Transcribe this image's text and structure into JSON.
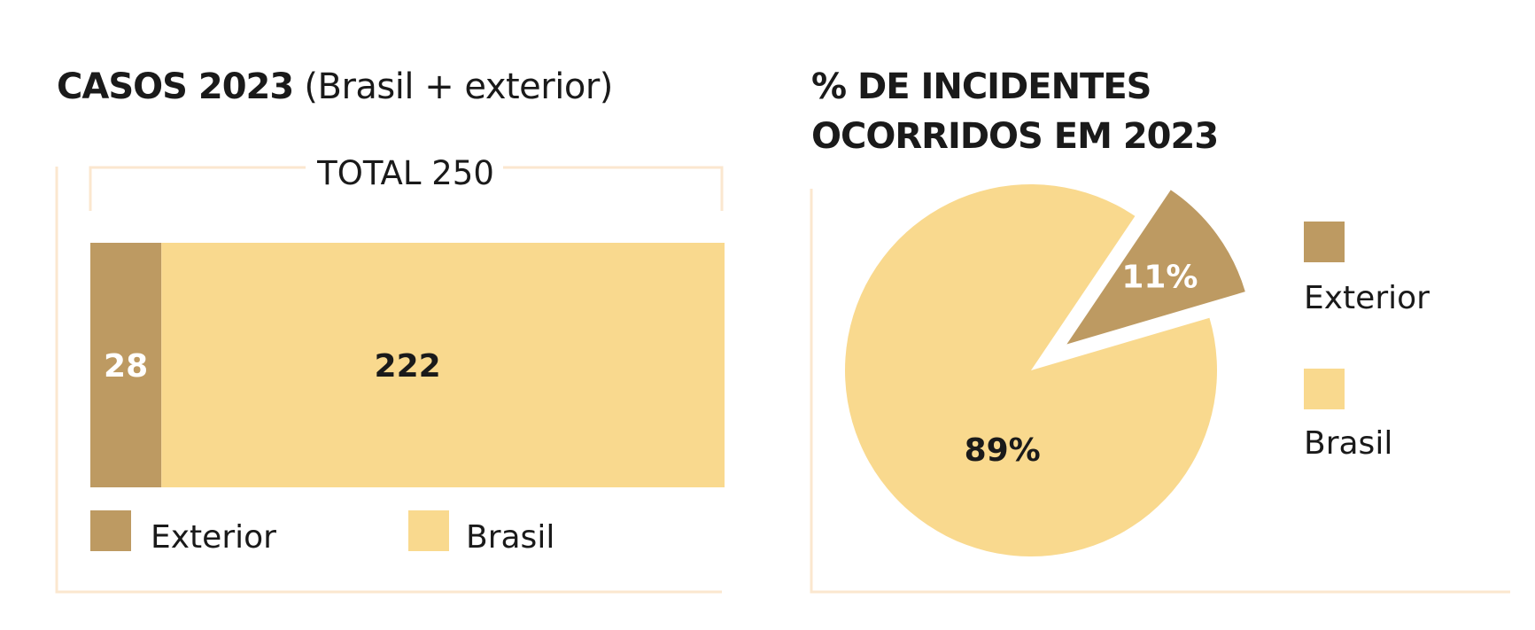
{
  "left_chart": {
    "title_bold": "CASOS 2023",
    "title_rest": " (Brasil + exterior)"
  },
  "right_chart": {
    "title_line1": "% DE INCIDENTES",
    "title_line2": "OCORRIDOS EM 2023"
  },
  "colors": {
    "exterior": "#bd9a62",
    "brasil": "#f9d98e",
    "frame": "#fbe7cf",
    "label_on_dark": "#ffffff",
    "label_on_light": "#1a1a1a"
  },
  "chart_data": [
    {
      "type": "bar",
      "stacked": true,
      "orientation": "horizontal",
      "title": "CASOS 2023 (Brasil + exterior)",
      "total_label": "TOTAL 250",
      "total": 250,
      "series": [
        {
          "name": "Exterior",
          "values": [
            28
          ],
          "label": "28"
        },
        {
          "name": "Brasil",
          "values": [
            222
          ],
          "label": "222"
        }
      ],
      "legend": [
        "Exterior",
        "Brasil"
      ],
      "legend_position": "bottom"
    },
    {
      "type": "pie",
      "title": "% DE INCIDENTES OCORRIDOS EM 2023",
      "slices": [
        {
          "name": "Exterior",
          "value": 11,
          "label": "11%",
          "exploded": true
        },
        {
          "name": "Brasil",
          "value": 89,
          "label": "89%"
        }
      ],
      "legend": [
        "Exterior",
        "Brasil"
      ],
      "legend_position": "right"
    }
  ]
}
